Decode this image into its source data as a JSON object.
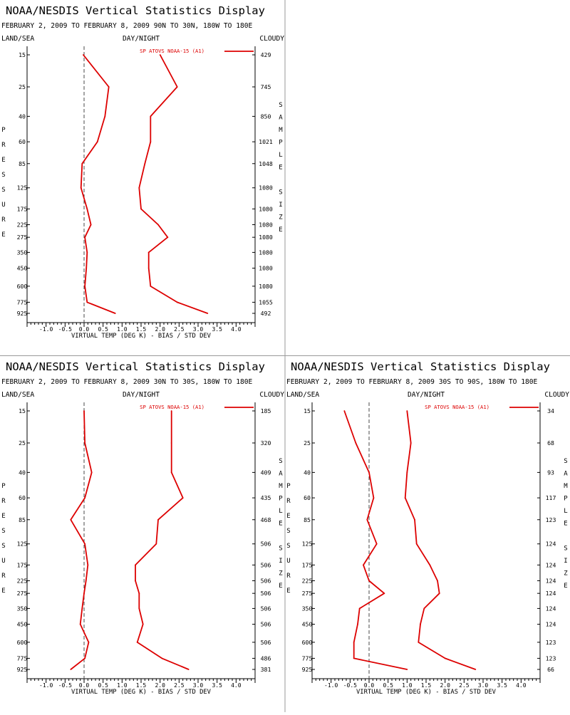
{
  "colors": {
    "series": "#dd0000",
    "axis": "#000000",
    "divider": "#999999",
    "zero_line": "#4a4a4a"
  },
  "common": {
    "title": "NOAA/NESDIS Vertical Statistics Display",
    "header_left": "LAND/SEA",
    "header_mid": "DAY/NIGHT",
    "header_right": "CLOUDY",
    "xlabel": "VIRTUAL TEMP (DEG K) - BIAS / STD DEV",
    "pressure_letters": [
      "P",
      "R",
      "E",
      "S",
      "S",
      "U",
      "R",
      "E"
    ],
    "sample_letters": [
      "S",
      "A",
      "M",
      "P",
      "L",
      "E",
      "",
      "S",
      "I",
      "Z",
      "E"
    ],
    "legend": "SP ATOVS NOAA-15 (A1)",
    "xticks": [
      "-1.0",
      "-0.5",
      "0.0",
      "0.5",
      "1.0",
      "1.5",
      "2.0",
      "2.5",
      "3.0",
      "3.5",
      "4.0"
    ],
    "xtick_values": [
      -1.0,
      -0.5,
      0.0,
      0.5,
      1.0,
      1.5,
      2.0,
      2.5,
      3.0,
      3.5,
      4.0
    ],
    "xlim": [
      -1.5,
      4.5
    ],
    "levels": [
      15,
      25,
      40,
      60,
      85,
      125,
      175,
      225,
      275,
      350,
      450,
      600,
      775,
      925
    ]
  },
  "panels": [
    {
      "subtitle": "FEBRUARY 2, 2009 TO FEBRUARY 8, 2009 90N TO 30N, 180W TO 180E",
      "sample_size": [
        "429",
        "745",
        "850",
        "1021",
        "1048",
        "1080",
        "1080",
        "1080",
        "1080",
        "1080",
        "1080",
        "1080",
        "1055",
        "492"
      ]
    },
    {
      "subtitle": "FEBRUARY 2, 2009 TO FEBRUARY 8, 2009 30N TO 30S, 180W TO 180E",
      "sample_size": [
        "185",
        "320",
        "409",
        "435",
        "468",
        "506",
        "506",
        "506",
        "506",
        "506",
        "506",
        "506",
        "486",
        "381"
      ]
    },
    {
      "subtitle": "FEBRUARY 2, 2009 TO FEBRUARY 8, 2009 30S TO 90S, 180W TO 180E",
      "sample_size": [
        "34",
        "68",
        "93",
        "117",
        "123",
        "124",
        "124",
        "124",
        "124",
        "124",
        "124",
        "123",
        "123",
        "66"
      ]
    }
  ],
  "chart_data": [
    {
      "type": "line",
      "title": "NOAA/NESDIS Vertical Statistics Display",
      "subtitle": "FEBRUARY 2, 2009 TO FEBRUARY 8, 2009 90N TO 30N, 180W TO 180E",
      "xlabel": "VIRTUAL TEMP (DEG K) - BIAS / STD DEV",
      "ylabel": "PRESSURE",
      "xlim": [
        -1.5,
        4.5
      ],
      "y": [
        15,
        25,
        40,
        60,
        85,
        125,
        175,
        225,
        275,
        350,
        450,
        600,
        775,
        925
      ],
      "series": [
        {
          "name": "SP ATOVS NOAA-15 (A1)",
          "stat": "bias",
          "values": [
            -0.02,
            0.65,
            0.55,
            0.35,
            -0.05,
            -0.08,
            0.08,
            0.18,
            0.02,
            0.08,
            0.06,
            0.02,
            0.08,
            0.82
          ]
        },
        {
          "name": "SP ATOVS NOAA-15 (A1)",
          "stat": "std_dev",
          "values": [
            2.0,
            2.45,
            1.75,
            1.75,
            1.6,
            1.45,
            1.5,
            1.95,
            2.2,
            1.7,
            1.7,
            1.75,
            2.45,
            3.25
          ]
        }
      ]
    },
    {
      "type": "line",
      "title": "NOAA/NESDIS Vertical Statistics Display",
      "subtitle": "FEBRUARY 2, 2009 TO FEBRUARY 8, 2009 30N TO 30S, 180W TO 180E",
      "xlabel": "VIRTUAL TEMP (DEG K) - BIAS / STD DEV",
      "ylabel": "PRESSURE",
      "xlim": [
        -1.5,
        4.5
      ],
      "y": [
        15,
        25,
        40,
        60,
        85,
        125,
        175,
        225,
        275,
        350,
        450,
        600,
        775,
        925
      ],
      "series": [
        {
          "name": "SP ATOVS NOAA-15 (A1)",
          "stat": "bias",
          "values": [
            0.0,
            0.02,
            0.2,
            0.02,
            -0.35,
            0.02,
            0.1,
            0.05,
            0.0,
            -0.05,
            -0.1,
            0.12,
            0.02,
            -0.35
          ]
        },
        {
          "name": "SP ATOVS NOAA-15 (A1)",
          "stat": "std_dev",
          "values": [
            2.3,
            2.3,
            2.3,
            2.6,
            1.95,
            1.9,
            1.35,
            1.35,
            1.45,
            1.45,
            1.55,
            1.4,
            2.05,
            2.75
          ]
        }
      ]
    },
    {
      "type": "line",
      "title": "NOAA/NESDIS Vertical Statistics Display",
      "subtitle": "FEBRUARY 2, 2009 TO FEBRUARY 8, 2009 30S TO 90S, 180W TO 180E",
      "xlabel": "VIRTUAL TEMP (DEG K) - BIAS / STD DEV",
      "ylabel": "PRESSURE",
      "xlim": [
        -1.5,
        4.5
      ],
      "y": [
        15,
        25,
        40,
        60,
        85,
        125,
        175,
        225,
        275,
        350,
        450,
        600,
        775,
        925
      ],
      "series": [
        {
          "name": "SP ATOVS NOAA-15 (A1)",
          "stat": "bias",
          "values": [
            -0.65,
            -0.35,
            0.0,
            0.12,
            -0.05,
            0.2,
            -0.15,
            0.0,
            0.4,
            -0.25,
            -0.3,
            -0.4,
            -0.4,
            1.0
          ]
        },
        {
          "name": "SP ATOVS NOAA-15 (A1)",
          "stat": "std_dev",
          "values": [
            1.0,
            1.1,
            1.0,
            0.95,
            1.2,
            1.25,
            1.6,
            1.8,
            1.85,
            1.45,
            1.35,
            1.3,
            2.0,
            2.8
          ]
        }
      ]
    }
  ]
}
